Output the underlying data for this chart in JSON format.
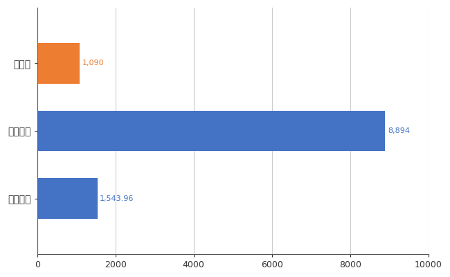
{
  "categories": [
    "全国平均",
    "全国最大",
    "三重県"
  ],
  "values": [
    1543.96,
    8894,
    1090
  ],
  "bar_colors": [
    "#4472c4",
    "#4472c4",
    "#ed7d31"
  ],
  "value_labels": [
    "1,543.96",
    "8,894",
    "1,090"
  ],
  "label_colors": [
    "#4472c4",
    "#4472c4",
    "#ed7d31"
  ],
  "xlim": [
    0,
    10000
  ],
  "xticks": [
    0,
    2000,
    4000,
    6000,
    8000,
    10000
  ],
  "xtick_labels": [
    "0",
    "2000",
    "4000",
    "6000",
    "8000",
    "10000"
  ],
  "background_color": "#ffffff",
  "grid_color": "#cccccc",
  "bar_height": 0.6
}
